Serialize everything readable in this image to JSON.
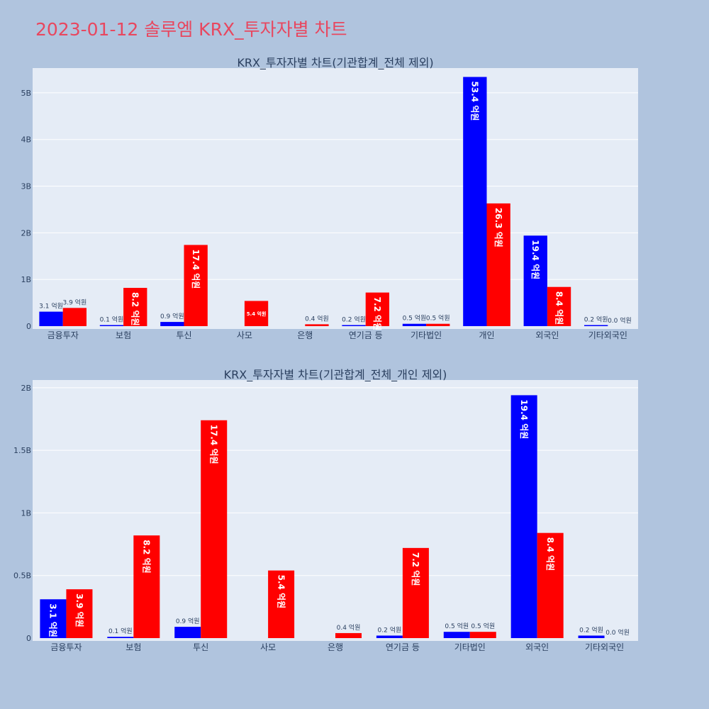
{
  "page_title": "2023-01-12 솔루엠 KRX_투자자별 차트",
  "chart_data": [
    {
      "type": "bar",
      "title": "KRX_투자자별 차트(기관합계_전체 제외)",
      "categories": [
        "금융투자",
        "보험",
        "투신",
        "사모",
        "은행",
        "연기금 등",
        "기타법인",
        "개인",
        "외국인",
        "기타외국인"
      ],
      "ylim": [
        0,
        5.5
      ],
      "yticks": [
        0,
        1,
        2,
        3,
        4,
        5
      ],
      "ytick_labels": [
        "0",
        "1B",
        "2B",
        "3B",
        "4B",
        "5B"
      ],
      "grid": true,
      "colors": [
        "#0000ff",
        "#ff0000"
      ],
      "series": [
        {
          "values": [
            0.31,
            0.01,
            0.09,
            0,
            0,
            0.02,
            0.05,
            5.34,
            1.94,
            0.02
          ],
          "labels": [
            "3.1 억원",
            "0.1 억원",
            "0.9 억원",
            "",
            "",
            "0.2 억원",
            "0.5 억원",
            "53.4 억원",
            "19.4 억원",
            "0.2 억원"
          ]
        },
        {
          "values": [
            0.39,
            0.82,
            1.74,
            0.54,
            0.04,
            0.72,
            0.05,
            2.63,
            0.84,
            0.0
          ],
          "labels": [
            "3.9 억원",
            "8.2 억원",
            "17.4 억원",
            "5.4 억원",
            "0.4 억원",
            "7.2 억원",
            "0.5 억원",
            "26.3 억원",
            "8.4 억원",
            "0.0 억원"
          ]
        }
      ]
    },
    {
      "type": "bar",
      "title": "KRX_투자자별 차트(기관합계_전체_개인 제외)",
      "categories": [
        "금융투자",
        "보험",
        "투신",
        "사모",
        "은행",
        "연기금 등",
        "기타법인",
        "외국인",
        "기타외국인"
      ],
      "ylim": [
        0,
        2.05
      ],
      "yticks": [
        0,
        0.5,
        1,
        1.5,
        2
      ],
      "ytick_labels": [
        "0",
        "0.5B",
        "1B",
        "1.5B",
        "2B"
      ],
      "grid": true,
      "colors": [
        "#0000ff",
        "#ff0000"
      ],
      "series": [
        {
          "values": [
            0.31,
            0.01,
            0.09,
            0,
            0,
            0.02,
            0.05,
            1.94,
            0.02
          ],
          "labels": [
            "3.1 억원",
            "0.1 억원",
            "0.9 억원",
            "",
            "",
            "0.2 억원",
            "0.5 억원",
            "19.4 억원",
            "0.2 억원"
          ]
        },
        {
          "values": [
            0.39,
            0.82,
            1.74,
            0.54,
            0.04,
            0.72,
            0.05,
            0.84,
            0.0
          ],
          "labels": [
            "3.9 억원",
            "8.2 억원",
            "17.4 억원",
            "5.4 억원",
            "0.4 억원",
            "7.2 억원",
            "0.5 억원",
            "8.4 억원",
            "0.0 억원"
          ]
        }
      ]
    }
  ]
}
